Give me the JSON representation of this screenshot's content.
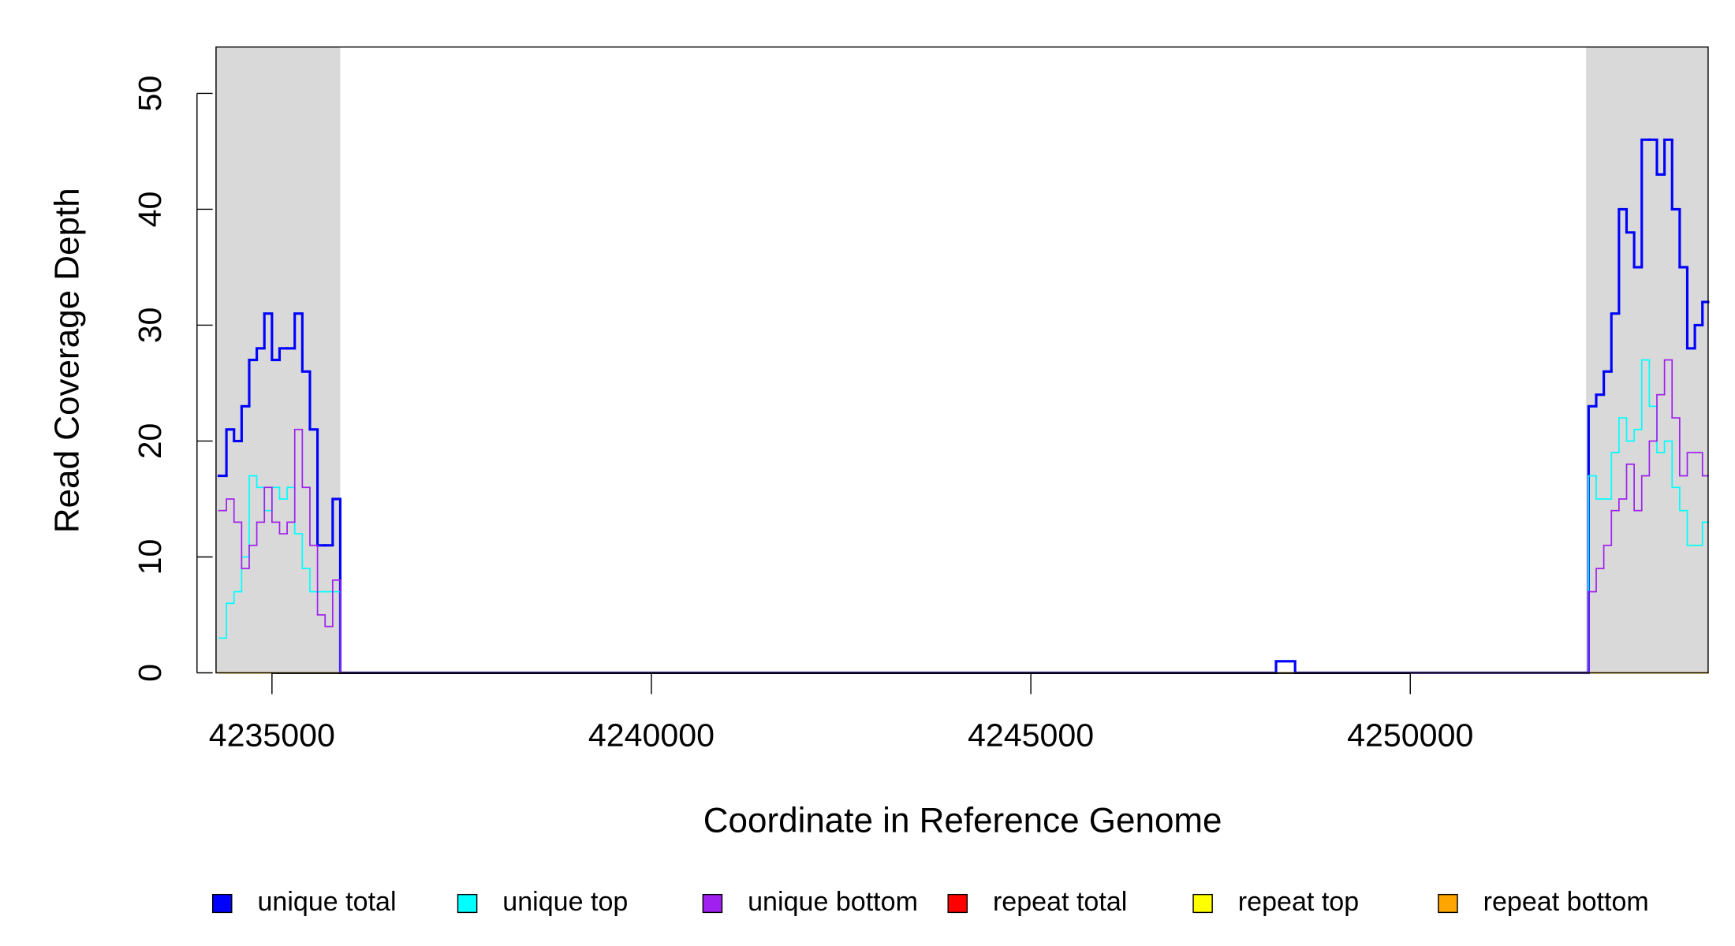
{
  "chart_data": {
    "type": "step",
    "x_label": "Coordinate in Reference Genome",
    "y_label": "Read Coverage Depth",
    "x": [
      4234300,
      4234400,
      4234500,
      4234600,
      4234700,
      4234800,
      4234900,
      4235000,
      4235100,
      4235200,
      4235300,
      4235400,
      4235500,
      4235600,
      4235700,
      4235800,
      4235900,
      4248231,
      4248482,
      4252317,
      4252350,
      4252450,
      4252550,
      4252650,
      4252750,
      4252850,
      4252950,
      4253050,
      4253150,
      4253250,
      4253350,
      4253450,
      4253550,
      4253650,
      4253750,
      4253850
    ],
    "series": [
      {
        "name": "unique total",
        "color": "#0000ff",
        "values": [
          17,
          21,
          20,
          23,
          27,
          28,
          31,
          27,
          28,
          28,
          31,
          26,
          21,
          11,
          11,
          15,
          0,
          1,
          0,
          0,
          23,
          24,
          26,
          31,
          40,
          38,
          35,
          46,
          46,
          43,
          46,
          40,
          35,
          28,
          30,
          32
        ]
      },
      {
        "name": "unique top",
        "color": "#00ffff",
        "values": [
          3,
          6,
          7,
          10,
          17,
          16,
          14,
          16,
          15,
          16,
          12,
          9,
          7,
          7,
          7,
          7,
          0,
          0,
          0,
          0,
          17,
          15,
          15,
          19,
          22,
          20,
          21,
          27,
          23,
          19,
          20,
          16,
          14,
          11,
          11,
          13
        ]
      },
      {
        "name": "unique bottom",
        "color": "#a020f0",
        "values": [
          14,
          15,
          13,
          9,
          11,
          13,
          16,
          13,
          12,
          13,
          21,
          16,
          11,
          5,
          4,
          8,
          0,
          0,
          0,
          0,
          7,
          9,
          11,
          14,
          15,
          18,
          14,
          17,
          20,
          24,
          27,
          22,
          17,
          19,
          19,
          17
        ]
      },
      {
        "name": "repeat total",
        "color": "#ff0000",
        "values": [
          0,
          0,
          0,
          0,
          0,
          0,
          0,
          0,
          0,
          0,
          0,
          0,
          0,
          0,
          0,
          0,
          0,
          0,
          0,
          0,
          0,
          0,
          0,
          0,
          0,
          0,
          0,
          0,
          0,
          0,
          0,
          0,
          0,
          0,
          0,
          0
        ]
      },
      {
        "name": "repeat top",
        "color": "#ffff00",
        "values": [
          0,
          0,
          0,
          0,
          0,
          0,
          0,
          0,
          0,
          0,
          0,
          0,
          0,
          0,
          0,
          0,
          0,
          0,
          0,
          0,
          0,
          0,
          0,
          0,
          0,
          0,
          0,
          0,
          0,
          0,
          0,
          0,
          0,
          0,
          0,
          0
        ]
      },
      {
        "name": "repeat bottom",
        "color": "#ffa500",
        "values": [
          0,
          0,
          0,
          0,
          0,
          0,
          0,
          0,
          0,
          0,
          0,
          0,
          0,
          0,
          0,
          0,
          0,
          0,
          0,
          0,
          0,
          0,
          0,
          0,
          0,
          0,
          0,
          0,
          0,
          0,
          0,
          0,
          0,
          0,
          0,
          0
        ]
      }
    ],
    "shaded_regions": [
      [
        4234263,
        4235900
      ],
      [
        4252317,
        4253925
      ]
    ],
    "shade_color": "#d9d9d9",
    "xlim": [
      4234263,
      4253925
    ],
    "xticks": [
      4235000,
      4240000,
      4245000,
      4250000
    ],
    "ylim": [
      0,
      54
    ],
    "yticks": [
      0,
      10,
      20,
      30,
      40,
      50
    ],
    "legend": "bottom"
  }
}
